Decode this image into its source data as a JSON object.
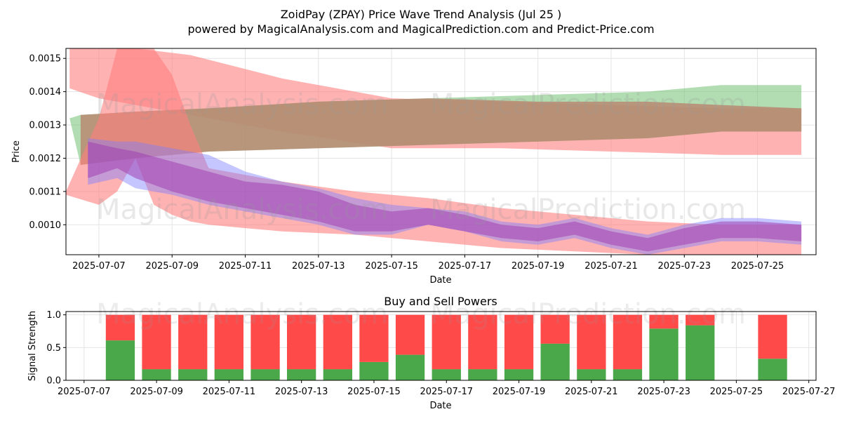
{
  "title_line1": "ZoidPay (ZPAY) Price Wave Trend Analysis (Jul 25 )",
  "title_line2": "powered by MagicalAnalysis.com and MagicalPrediction.com and Predict-Price.com",
  "watermarks": [
    "MagicalAnalysis.com",
    "MagicalPrediction.com"
  ],
  "colors": {
    "red_band": "#ff7f7f",
    "green_band": "#66bb66",
    "blue_band": "#7f7fff",
    "purple_band": "#a040b0",
    "brown_band": "#b98a72",
    "buy": "#4aa84a",
    "sell": "#ff4a4a"
  },
  "chart_data": [
    {
      "type": "area",
      "title": "",
      "xlabel": "Date",
      "ylabel": "Price",
      "ylim": [
        0.00091,
        0.00153
      ],
      "yticks": [
        0.001,
        0.0011,
        0.0012,
        0.0013,
        0.0014,
        0.0015
      ],
      "ytick_labels": [
        "0.0010",
        "0.0011",
        "0.0012",
        "0.0013",
        "0.0014",
        "0.0015"
      ],
      "xlim_days": [
        6.1,
        26.6
      ],
      "xticks": [
        "2025-07-07",
        "2025-07-09",
        "2025-07-11",
        "2025-07-13",
        "2025-07-15",
        "2025-07-17",
        "2025-07-19",
        "2025-07-21",
        "2025-07-23",
        "2025-07-25"
      ],
      "grid": true,
      "bands": [
        {
          "name": "upper-red",
          "color": "red",
          "x": [
            6.2,
            7.0,
            8.0,
            9.5,
            12.0,
            15.0,
            18.0,
            21.0,
            24.0,
            26.2
          ],
          "upper": [
            0.00153,
            0.00153,
            0.00153,
            0.00151,
            0.00144,
            0.00138,
            0.00137,
            0.00136,
            0.00135,
            0.00135
          ],
          "lower": [
            0.00141,
            0.00138,
            0.00136,
            0.00133,
            0.00128,
            0.00123,
            0.00123,
            0.00122,
            0.00121,
            0.00121
          ]
        },
        {
          "name": "upper-green",
          "color": "green",
          "x": [
            6.2,
            6.5,
            8.0,
            10.0,
            13.0,
            16.0,
            19.0,
            22.0,
            24.0,
            26.2
          ],
          "upper": [
            0.00132,
            0.00133,
            0.00134,
            0.00135,
            0.00137,
            0.00138,
            0.00139,
            0.0014,
            0.00142,
            0.00142
          ],
          "lower": [
            0.00132,
            0.00118,
            0.0012,
            0.00122,
            0.00123,
            0.00124,
            0.00125,
            0.00126,
            0.00128,
            0.00128
          ]
        },
        {
          "name": "upper-brown",
          "color": "brown",
          "x": [
            6.5,
            8.0,
            10.0,
            13.0,
            16.0,
            19.0,
            22.0,
            24.0,
            26.2
          ],
          "upper": [
            0.00133,
            0.00134,
            0.00135,
            0.00137,
            0.00138,
            0.00137,
            0.00137,
            0.00136,
            0.00135
          ],
          "lower": [
            0.00118,
            0.0012,
            0.00122,
            0.00123,
            0.00124,
            0.00125,
            0.00126,
            0.00128,
            0.00128
          ]
        },
        {
          "name": "spike-red",
          "color": "red",
          "x": [
            6.1,
            7.0,
            7.5,
            8.0,
            8.5,
            9.0,
            9.5,
            10.0,
            11.0,
            12.0,
            14.0,
            16.0,
            18.0,
            20.0,
            22.0,
            24.0,
            26.2
          ],
          "upper": [
            0.0011,
            0.00132,
            0.00153,
            0.00153,
            0.00153,
            0.00145,
            0.0013,
            0.00117,
            0.00115,
            0.00113,
            0.0011,
            0.00108,
            0.00105,
            0.00103,
            0.00101,
            0.001,
            0.001
          ],
          "lower": [
            0.00109,
            0.00106,
            0.0011,
            0.0012,
            0.00106,
            0.00103,
            0.00101,
            0.001,
            0.00099,
            0.00098,
            0.00097,
            0.00095,
            0.00093,
            0.00092,
            0.00091,
            0.00091,
            0.00091
          ]
        },
        {
          "name": "blue-wave",
          "color": "blue",
          "x": [
            6.7,
            7.5,
            8.0,
            9.0,
            10.0,
            11.0,
            12.0,
            13.0,
            14.0,
            15.0,
            16.0,
            17.0,
            18.0,
            19.0,
            20.0,
            21.0,
            22.0,
            23.0,
            24.0,
            25.0,
            26.2
          ],
          "upper": [
            0.00126,
            0.00125,
            0.00125,
            0.00123,
            0.00121,
            0.00116,
            0.00113,
            0.00111,
            0.00108,
            0.00106,
            0.00105,
            0.00104,
            0.00101,
            0.001,
            0.00102,
            0.00099,
            0.00097,
            0.001,
            0.00102,
            0.00102,
            0.00101
          ],
          "lower": [
            0.00112,
            0.00114,
            0.00111,
            0.00109,
            0.00106,
            0.00104,
            0.00102,
            0.001,
            0.00097,
            0.00097,
            0.001,
            0.00098,
            0.00095,
            0.00094,
            0.00096,
            0.00093,
            0.00091,
            0.00093,
            0.00095,
            0.00095,
            0.00094
          ]
        },
        {
          "name": "purple-wave",
          "color": "purple",
          "x": [
            6.7,
            7.5,
            8.0,
            9.0,
            10.0,
            11.0,
            12.0,
            13.0,
            14.0,
            15.0,
            16.0,
            17.0,
            18.0,
            19.0,
            20.0,
            21.0,
            22.0,
            23.0,
            24.0,
            25.0,
            26.2
          ],
          "upper": [
            0.00125,
            0.00123,
            0.00122,
            0.00119,
            0.00116,
            0.00113,
            0.00112,
            0.0011,
            0.00106,
            0.00104,
            0.00105,
            0.00103,
            0.001,
            0.00099,
            0.00101,
            0.00098,
            0.00096,
            0.00099,
            0.00101,
            0.00101,
            0.001
          ],
          "lower": [
            0.00114,
            0.00117,
            0.00114,
            0.0011,
            0.00107,
            0.00105,
            0.00103,
            0.00101,
            0.00098,
            0.00098,
            0.001,
            0.00098,
            0.00096,
            0.00095,
            0.00097,
            0.00094,
            0.00092,
            0.00094,
            0.00096,
            0.00096,
            0.00095
          ]
        }
      ]
    },
    {
      "type": "bar",
      "title": "Buy and Sell Powers",
      "xlabel": "Date",
      "ylabel": "Signal Strength",
      "ylim": [
        0,
        1.05
      ],
      "yticks": [
        0.0,
        0.5,
        1.0
      ],
      "ytick_labels": [
        "0.0",
        "0.5",
        "1.0"
      ],
      "xlim_days": [
        6.5,
        27.2
      ],
      "xticks": [
        "2025-07-07",
        "2025-07-09",
        "2025-07-11",
        "2025-07-13",
        "2025-07-15",
        "2025-07-17",
        "2025-07-19",
        "2025-07-21",
        "2025-07-23",
        "2025-07-25",
        "2025-07-27"
      ],
      "grid": true,
      "bar_days": [
        8,
        9,
        10,
        11,
        12,
        13,
        14,
        15,
        16,
        17,
        18,
        19,
        20,
        21,
        22,
        23,
        24,
        26
      ],
      "categories": [
        "2025-07-08",
        "2025-07-09",
        "2025-07-10",
        "2025-07-11",
        "2025-07-12",
        "2025-07-13",
        "2025-07-14",
        "2025-07-15",
        "2025-07-16",
        "2025-07-17",
        "2025-07-18",
        "2025-07-19",
        "2025-07-20",
        "2025-07-21",
        "2025-07-22",
        "2025-07-23",
        "2025-07-24",
        "2025-07-26"
      ],
      "series": [
        {
          "name": "Buy",
          "values": [
            0.61,
            0.17,
            0.17,
            0.17,
            0.17,
            0.17,
            0.17,
            0.28,
            0.39,
            0.17,
            0.17,
            0.17,
            0.56,
            0.17,
            0.17,
            0.79,
            0.84,
            0.33
          ]
        },
        {
          "name": "Sell",
          "values": [
            0.39,
            0.83,
            0.83,
            0.83,
            0.83,
            0.83,
            0.83,
            0.72,
            0.61,
            0.83,
            0.83,
            0.83,
            0.44,
            0.83,
            0.83,
            0.21,
            0.16,
            0.67
          ]
        }
      ]
    }
  ]
}
